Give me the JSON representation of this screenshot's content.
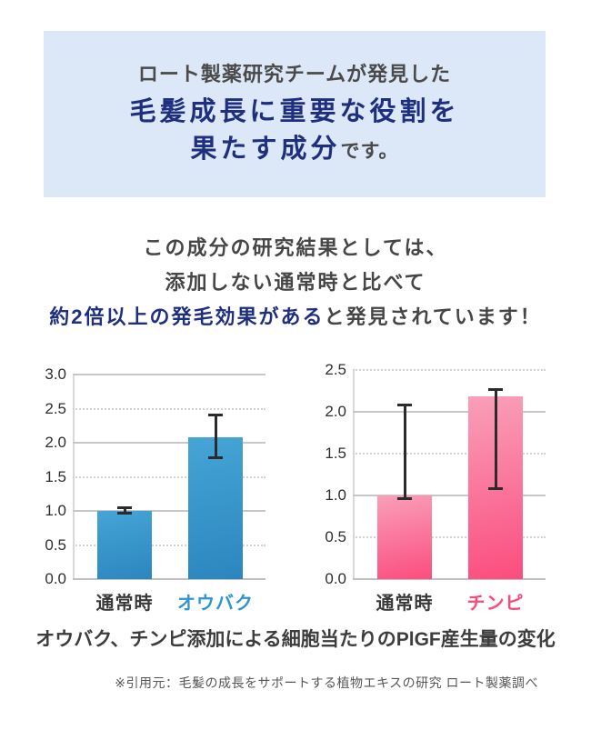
{
  "colors": {
    "navy": "#1f2f80",
    "dark_text": "#464646",
    "box_bg": "#dce7f7",
    "blue_bar_top": "#46a4d6",
    "blue_bar_bottom": "#2b86be",
    "pink_bar_top": "#f99fb9",
    "pink_bar_bottom": "#fb4d7e",
    "blue_label": "#2e96ce",
    "pink_label": "#fa4a7b"
  },
  "top_box": {
    "line1": "ロート製薬研究チームが発見した",
    "line2": "毛髪成長に重要な役割を",
    "line3_strong": "果たす成分",
    "line3_rest": "です。"
  },
  "statement": {
    "line1": "この成分の研究結果としては、",
    "line2": "添加しない通常時と比べて",
    "line3_highlight": "約2倍以上の発毛効果がある",
    "line3_rest": "と発見されています！"
  },
  "chart_data": [
    {
      "type": "bar",
      "id": "ouhaku",
      "categories": [
        "通常時",
        "オウバク"
      ],
      "values": [
        1.0,
        2.08
      ],
      "error_low": [
        0.95,
        1.76
      ],
      "error_high": [
        1.07,
        2.43
      ],
      "ylim": [
        0,
        3.0
      ],
      "yticks": [
        {
          "label": "3.0",
          "value": 3.0,
          "line": "solid"
        },
        {
          "label": "2.5",
          "value": 2.5,
          "line": "dotted"
        },
        {
          "label": "2.0",
          "value": 2.0,
          "line": "solid"
        },
        {
          "label": "1.5",
          "value": 1.5,
          "line": "dotted"
        },
        {
          "label": "1.0",
          "value": 1.0,
          "line": "solid"
        },
        {
          "label": "0.5",
          "value": 0.5,
          "line": "dotted"
        },
        {
          "label": "0.0",
          "value": 0.0,
          "line": "axis"
        }
      ],
      "bar_gradient": [
        "#46a4d6",
        "#2b86be"
      ],
      "category_colors": [
        "#3a3a3a",
        "#2e96ce"
      ],
      "grid": true,
      "legend": false
    },
    {
      "type": "bar",
      "id": "chinpi",
      "categories": [
        "通常時",
        "チンピ"
      ],
      "values": [
        1.0,
        2.18
      ],
      "error_low": [
        0.95,
        1.06
      ],
      "error_high": [
        2.1,
        2.28
      ],
      "ylim": [
        0,
        2.5
      ],
      "yticks": [
        {
          "label": "2.5",
          "value": 2.5,
          "line": "dotted"
        },
        {
          "label": "2.0",
          "value": 2.0,
          "line": "solid"
        },
        {
          "label": "1.5",
          "value": 1.5,
          "line": "dotted"
        },
        {
          "label": "1.0",
          "value": 1.0,
          "line": "solid"
        },
        {
          "label": "0.5",
          "value": 0.5,
          "line": "dotted"
        },
        {
          "label": "0.0",
          "value": 0.0,
          "line": "axis"
        }
      ],
      "bar_gradient": [
        "#f99fb9",
        "#fb4d7e"
      ],
      "category_colors": [
        "#3a3a3a",
        "#fa4a7b"
      ],
      "grid": true,
      "legend": false
    }
  ],
  "caption": "オウバク、チンピ添加による細胞当たりのPlGF産生量の変化",
  "citation": "※引用元：毛髪の成長をサポートする植物エキスの研究 ロート製薬調べ"
}
